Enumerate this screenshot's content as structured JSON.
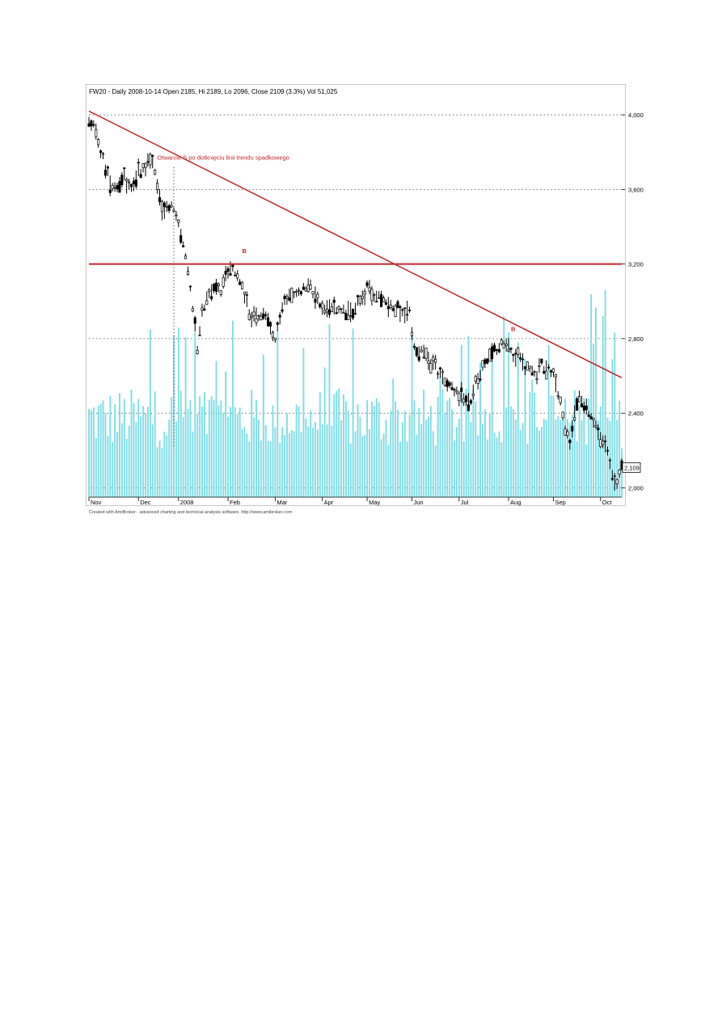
{
  "chart_data": {
    "type": "candlestick",
    "title": "FW20 - Daily 2008-10-14 Open 2185, Hi 2189, Lo 2096, Close 2109 (3.3%) Vol 51,025",
    "credit": "Created with AmiBroker - advanced charting and technical analysis software. http://www.amibroker.com",
    "ylim": [
      1950,
      4100
    ],
    "y_ticks": [
      {
        "value": 4000,
        "label": "4,000"
      },
      {
        "value": 3600,
        "label": "3,600"
      },
      {
        "value": 3200,
        "label": "3,200"
      },
      {
        "value": 2800,
        "label": "2,800"
      },
      {
        "value": 2400,
        "label": "2,400"
      },
      {
        "value": 2000,
        "label": "2,000"
      }
    ],
    "x_labels": [
      {
        "label": "Nov",
        "day": 0
      },
      {
        "label": "Dec",
        "day": 21
      },
      {
        "label": "2008",
        "day": 38
      },
      {
        "label": "Feb",
        "day": 59
      },
      {
        "label": "Mar",
        "day": 79
      },
      {
        "label": "Apr",
        "day": 99
      },
      {
        "label": "May",
        "day": 118
      },
      {
        "label": "Jun",
        "day": 137
      },
      {
        "label": "Jul",
        "day": 157
      },
      {
        "label": "Aug",
        "day": 178
      },
      {
        "label": "Sep",
        "day": 197
      },
      {
        "label": "Oct",
        "day": 217
      }
    ],
    "total_days": 226,
    "last_close_label": "2,109",
    "price_path": [
      [
        0,
        3990
      ],
      [
        3,
        3900
      ],
      [
        6,
        3760
      ],
      [
        9,
        3640
      ],
      [
        12,
        3620
      ],
      [
        15,
        3680
      ],
      [
        18,
        3600
      ],
      [
        21,
        3700
      ],
      [
        24,
        3720
      ],
      [
        26,
        3770
      ],
      [
        28,
        3700
      ],
      [
        30,
        3560
      ],
      [
        32,
        3470
      ],
      [
        34,
        3520
      ],
      [
        36,
        3480
      ],
      [
        38,
        3420
      ],
      [
        40,
        3300
      ],
      [
        42,
        3150
      ],
      [
        44,
        2980
      ],
      [
        46,
        2760
      ],
      [
        48,
        2950
      ],
      [
        50,
        3000
      ],
      [
        53,
        3080
      ],
      [
        56,
        3060
      ],
      [
        58,
        3120
      ],
      [
        60,
        3180
      ],
      [
        63,
        3140
      ],
      [
        66,
        3020
      ],
      [
        69,
        2920
      ],
      [
        72,
        2900
      ],
      [
        75,
        2940
      ],
      [
        77,
        2850
      ],
      [
        79,
        2790
      ],
      [
        82,
        2970
      ],
      [
        85,
        3030
      ],
      [
        88,
        3050
      ],
      [
        91,
        3060
      ],
      [
        94,
        3070
      ],
      [
        97,
        3010
      ],
      [
        100,
        2940
      ],
      [
        103,
        2970
      ],
      [
        106,
        2960
      ],
      [
        109,
        2940
      ],
      [
        112,
        2950
      ],
      [
        115,
        3020
      ],
      [
        118,
        3070
      ],
      [
        121,
        3040
      ],
      [
        124,
        3010
      ],
      [
        127,
        2990
      ],
      [
        130,
        2960
      ],
      [
        133,
        2950
      ],
      [
        136,
        2930
      ],
      [
        138,
        2760
      ],
      [
        141,
        2730
      ],
      [
        144,
        2700
      ],
      [
        147,
        2650
      ],
      [
        150,
        2590
      ],
      [
        153,
        2540
      ],
      [
        156,
        2510
      ],
      [
        159,
        2480
      ],
      [
        161,
        2440
      ],
      [
        163,
        2530
      ],
      [
        166,
        2620
      ],
      [
        169,
        2700
      ],
      [
        172,
        2740
      ],
      [
        175,
        2770
      ],
      [
        178,
        2790
      ],
      [
        180,
        2720
      ],
      [
        183,
        2700
      ],
      [
        186,
        2630
      ],
      [
        189,
        2600
      ],
      [
        192,
        2660
      ],
      [
        195,
        2650
      ],
      [
        198,
        2570
      ],
      [
        200,
        2460
      ],
      [
        202,
        2300
      ],
      [
        204,
        2250
      ],
      [
        206,
        2420
      ],
      [
        208,
        2470
      ],
      [
        210,
        2440
      ],
      [
        212,
        2410
      ],
      [
        214,
        2360
      ],
      [
        216,
        2280
      ],
      [
        218,
        2230
      ],
      [
        220,
        2180
      ],
      [
        222,
        2060
      ],
      [
        224,
        2020
      ],
      [
        226,
        2109
      ]
    ],
    "volume_max": 60000,
    "trendline": {
      "from": [
        0,
        4020
      ],
      "to": [
        226,
        2590
      ]
    },
    "resistance_level": 3200,
    "highlight_days": [
      26,
      61,
      178
    ],
    "annotations": [
      {
        "text": "Otwarcie S po dotknięciu linii trendu spadkowego",
        "day": 29,
        "value": 3760
      },
      {
        "text": "B",
        "day": 65,
        "value": 3260
      },
      {
        "text": "B",
        "day": 179,
        "value": 2840
      }
    ],
    "vertical_marker_day": 36,
    "colors": {
      "candle": "#000000",
      "volume": "#7fdde6",
      "trend": "#c0272d",
      "grid": "#555555",
      "annotation": "#c0272d"
    }
  }
}
